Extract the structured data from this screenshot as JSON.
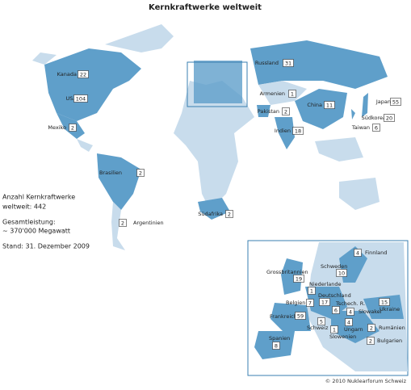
{
  "title": "Kernkraftwerke weltweit",
  "world": [
    {
      "name": "Kanada",
      "count": 22
    },
    {
      "name": "USA",
      "count": 104
    },
    {
      "name": "Mexiko",
      "count": 2
    },
    {
      "name": "Brasilien",
      "count": 2
    },
    {
      "name": "Argentinien",
      "count": 2
    },
    {
      "name": "Südafrika",
      "count": 2
    },
    {
      "name": "Russland",
      "count": 31
    },
    {
      "name": "Armenien",
      "count": 1
    },
    {
      "name": "Pakistan",
      "count": 2
    },
    {
      "name": "Indien",
      "count": 18
    },
    {
      "name": "China",
      "count": 11
    },
    {
      "name": "Japan",
      "count": 55
    },
    {
      "name": "Südkorea",
      "count": 20
    },
    {
      "name": "Taiwan",
      "count": 6
    }
  ],
  "europe": [
    {
      "name": "Finnland",
      "count": 4
    },
    {
      "name": "Schweden",
      "count": 10
    },
    {
      "name": "Grossbritannien",
      "count": 19
    },
    {
      "name": "Niederlande",
      "count": 1
    },
    {
      "name": "Deutschland",
      "count": 17
    },
    {
      "name": "Belgien",
      "count": 7
    },
    {
      "name": "Tschech. R.",
      "count": 6
    },
    {
      "name": "Frankreich",
      "count": 59
    },
    {
      "name": "Slowakei",
      "count": 4
    },
    {
      "name": "Ukraine",
      "count": 15
    },
    {
      "name": "Schweiz",
      "count": 5
    },
    {
      "name": "Ungarn",
      "count": 4
    },
    {
      "name": "Rumänien",
      "count": 2
    },
    {
      "name": "Slowenien",
      "count": 1
    },
    {
      "name": "Spanien",
      "count": 8
    },
    {
      "name": "Bulgarien",
      "count": 2
    }
  ],
  "info": [
    "Anzahl Kernkraftwerke",
    "weltweit: 442",
    "Gesamtleistung:",
    "~ 370'000 Megawatt",
    "Stand: 31. Dezember 2009"
  ],
  "copyright": "© 2010 Nuklearforum Schweiz"
}
